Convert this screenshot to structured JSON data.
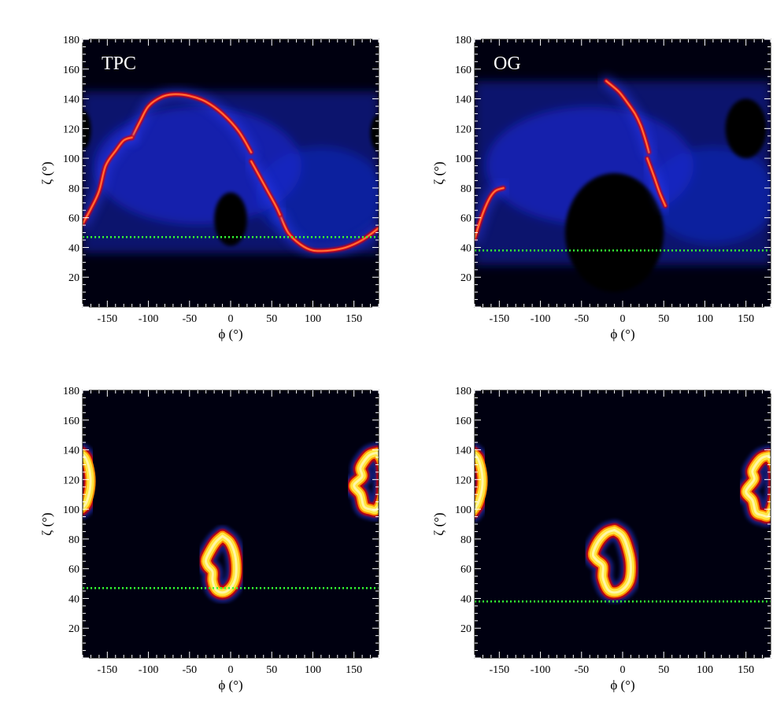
{
  "chart_data": [
    {
      "type": "heatmap",
      "label": "TPC",
      "xlabel": "ϕ (°)",
      "ylabel": "ζ (°)",
      "xlim": [
        -180,
        180
      ],
      "ylim": [
        0,
        180
      ],
      "xticks": [
        -150,
        -100,
        -50,
        0,
        50,
        100,
        150
      ],
      "yticks": [
        20,
        40,
        60,
        80,
        100,
        120,
        140,
        160,
        180
      ],
      "colormap": "black-blue-red-yellow-white",
      "reference_line": {
        "y": 47,
        "color": "#33ff33",
        "style": "dotted"
      },
      "caustics": [
        {
          "name": "upper-arc",
          "points": [
            [
              -120,
              114
            ],
            [
              -110,
              125
            ],
            [
              -100,
              135
            ],
            [
              -85,
              141
            ],
            [
              -70,
              143
            ],
            [
              -50,
              142
            ],
            [
              -30,
              138
            ],
            [
              -10,
              130
            ],
            [
              10,
              118
            ],
            [
              25,
              104
            ]
          ]
        },
        {
          "name": "lower-arc",
          "points": [
            [
              60,
              62
            ],
            [
              70,
              50
            ],
            [
              85,
              42
            ],
            [
              100,
              38
            ],
            [
              120,
              38
            ],
            [
              140,
              40
            ],
            [
              160,
              45
            ],
            [
              180,
              53
            ]
          ]
        },
        {
          "name": "mid-right",
          "points": [
            [
              25,
              98
            ],
            [
              35,
              88
            ],
            [
              45,
              78
            ],
            [
              55,
              68
            ],
            [
              60,
              62
            ]
          ]
        },
        {
          "name": "left-arc",
          "points": [
            [
              -180,
              56
            ],
            [
              -170,
              66
            ],
            [
              -160,
              78
            ],
            [
              -152,
              95
            ],
            [
              -140,
              105
            ],
            [
              -130,
              112
            ],
            [
              -120,
              114
            ]
          ]
        }
      ],
      "dark_holes": [
        {
          "cx": 0,
          "cy": 59,
          "rx": 20,
          "ry": 18
        },
        {
          "cx": -180,
          "cy": 119,
          "rx": 10,
          "ry": 13
        },
        {
          "cx": 180,
          "cy": 117,
          "rx": 10,
          "ry": 12
        }
      ]
    },
    {
      "type": "heatmap",
      "label": "OG",
      "xlabel": "ϕ (°)",
      "ylabel": "ζ (°)",
      "xlim": [
        -180,
        180
      ],
      "ylim": [
        0,
        180
      ],
      "xticks": [
        -150,
        -100,
        -50,
        0,
        50,
        100,
        150
      ],
      "yticks": [
        20,
        40,
        60,
        80,
        100,
        120,
        140,
        160,
        180
      ],
      "colormap": "black-blue-red-yellow-white",
      "reference_line": {
        "y": 38,
        "color": "#33ff33",
        "style": "dotted"
      },
      "caustics": [
        {
          "name": "right-cusp",
          "points": [
            [
              -20,
              152
            ],
            [
              -5,
              145
            ],
            [
              5,
              138
            ],
            [
              15,
              130
            ],
            [
              22,
              122
            ],
            [
              28,
              112
            ],
            [
              32,
              104
            ]
          ]
        },
        {
          "name": "mid-right",
          "points": [
            [
              30,
              100
            ],
            [
              38,
              88
            ],
            [
              45,
              77
            ],
            [
              52,
              68
            ]
          ]
        },
        {
          "name": "left-arc",
          "points": [
            [
              -180,
              46
            ],
            [
              -172,
              60
            ],
            [
              -163,
              72
            ],
            [
              -155,
              78
            ],
            [
              -145,
              80
            ]
          ]
        }
      ],
      "dark_holes": [
        {
          "cx": -10,
          "cy": 50,
          "rx": 60,
          "ry": 40
        },
        {
          "cx": 150,
          "cy": 120,
          "rx": 25,
          "ry": 20
        }
      ]
    },
    {
      "type": "heatmap",
      "label": "",
      "xlabel": "ϕ (°)",
      "ylabel": "ζ (°)",
      "xlim": [
        -180,
        180
      ],
      "ylim": [
        0,
        180
      ],
      "xticks": [
        -150,
        -100,
        -50,
        0,
        50,
        100,
        150
      ],
      "yticks": [
        20,
        40,
        60,
        80,
        100,
        120,
        140,
        160,
        180
      ],
      "colormap": "black-blue-red-yellow-white",
      "reference_line": {
        "y": 47,
        "color": "#33ff33",
        "style": "dotted"
      },
      "rings": [
        {
          "name": "center-ring",
          "points": [
            [
              -10,
              82
            ],
            [
              -1,
              78
            ],
            [
              5,
              70
            ],
            [
              7,
              60
            ],
            [
              5,
              52
            ],
            [
              -2,
              46
            ],
            [
              -10,
              44
            ],
            [
              -18,
              46
            ],
            [
              -22,
              52
            ],
            [
              -22,
              58
            ],
            [
              -28,
              62
            ],
            [
              -30,
              66
            ],
            [
              -25,
              72
            ],
            [
              -18,
              78
            ],
            [
              -10,
              82
            ]
          ]
        },
        {
          "name": "right-ring",
          "points": [
            [
              178,
              138
            ],
            [
              168,
              136
            ],
            [
              158,
              128
            ],
            [
              160,
              122
            ],
            [
              150,
              116
            ],
            [
              158,
              110
            ],
            [
              162,
              102
            ],
            [
              170,
              100
            ],
            [
              178,
              100
            ],
            [
              185,
              110
            ],
            [
              185,
              130
            ],
            [
              178,
              138
            ]
          ]
        },
        {
          "name": "left-ring",
          "points": [
            [
              -183,
              138
            ],
            [
              -176,
              134
            ],
            [
              -171,
              124
            ],
            [
              -171,
              114
            ],
            [
              -176,
              104
            ],
            [
              -183,
              100
            ]
          ]
        }
      ]
    },
    {
      "type": "heatmap",
      "label": "",
      "xlabel": "ϕ (°)",
      "ylabel": "ζ (°)",
      "xlim": [
        -180,
        180
      ],
      "ylim": [
        0,
        180
      ],
      "xticks": [
        -150,
        -100,
        -50,
        0,
        50,
        100,
        150
      ],
      "yticks": [
        20,
        40,
        60,
        80,
        100,
        120,
        140,
        160,
        180
      ],
      "colormap": "black-blue-red-yellow-white",
      "reference_line": {
        "y": 38,
        "color": "#33ff33",
        "style": "dotted"
      },
      "rings": [
        {
          "name": "center-ring",
          "points": [
            [
              -10,
              86
            ],
            [
              0,
              82
            ],
            [
              7,
              72
            ],
            [
              10,
              62
            ],
            [
              8,
              52
            ],
            [
              0,
              46
            ],
            [
              -10,
              44
            ],
            [
              -18,
              46
            ],
            [
              -24,
              54
            ],
            [
              -24,
              62
            ],
            [
              -32,
              66
            ],
            [
              -36,
              70
            ],
            [
              -30,
              78
            ],
            [
              -20,
              84
            ],
            [
              -10,
              86
            ]
          ]
        },
        {
          "name": "right-ring",
          "points": [
            [
              178,
              136
            ],
            [
              168,
              134
            ],
            [
              158,
              126
            ],
            [
              160,
              120
            ],
            [
              150,
              112
            ],
            [
              158,
              106
            ],
            [
              162,
              98
            ],
            [
              170,
              96
            ],
            [
              178,
              96
            ],
            [
              185,
              108
            ],
            [
              185,
              128
            ],
            [
              178,
              136
            ]
          ]
        },
        {
          "name": "left-ring",
          "points": [
            [
              -183,
              138
            ],
            -176,
            [
              -176,
              134
            ],
            [
              -171,
              124
            ],
            [
              -171,
              114
            ],
            [
              -176,
              104
            ],
            [
              -183,
              98
            ]
          ]
        }
      ]
    }
  ]
}
